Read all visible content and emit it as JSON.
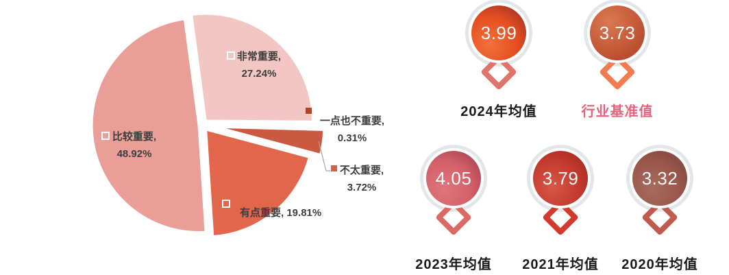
{
  "chart_data": {
    "type": "pie",
    "title": "",
    "start_angle_deg": -7.6,
    "legend_position": "none",
    "slices": [
      {
        "name": "非常重要",
        "label_text": "非常重要,",
        "value_text": "27.24%",
        "pct": 27.24,
        "color": "#f2c6c2",
        "explode": 8,
        "marker": "hollow"
      },
      {
        "name": "一点也不重要",
        "label_text": "一点也不重要,",
        "value_text": "0.31%",
        "pct": 0.31,
        "color": "#a8402e",
        "explode": 16,
        "marker": "#b1432c"
      },
      {
        "name": "不太重要",
        "label_text": "不太重要,",
        "value_text": "3.72%",
        "pct": 3.72,
        "color": "#cb5840",
        "explode": 22,
        "marker": "#d2604a"
      },
      {
        "name": "有点重要",
        "label_text": "有点重要,",
        "value_text": "19.81%",
        "pct": 19.81,
        "color": "#e2664b",
        "explode": 9,
        "marker": "hollow"
      },
      {
        "name": "比较重要",
        "label_text": "比较重要,",
        "value_text": "48.92%",
        "pct": 48.92,
        "color": "#e99e97",
        "explode": 5,
        "marker": "hollow"
      }
    ]
  },
  "badges": [
    {
      "value": "3.99",
      "label": "2024年均值",
      "label_color": "#1a1a1a",
      "gradient": [
        "#f2703c",
        "#e54e20",
        "#8a2c26"
      ],
      "diamond": "#e0736b"
    },
    {
      "value": "3.73",
      "label": "行业基准值",
      "label_color": "#e8627e",
      "gradient": [
        "#d97a52",
        "#c65a38",
        "#a83f24"
      ],
      "diamond": "#f07c50"
    },
    {
      "value": "4.05",
      "label": "2023年均值",
      "label_color": "#1a1a1a",
      "gradient": [
        "#df767c",
        "#d45f68",
        "#96394a"
      ],
      "diamond": "#dc6a64"
    },
    {
      "value": "3.79",
      "label": "2021年均值",
      "label_color": "#1a1a1a",
      "gradient": [
        "#d65848",
        "#c43a2e",
        "#99261f"
      ],
      "diamond": "#d23a2e"
    },
    {
      "value": "3.32",
      "label": "2020年均值",
      "label_color": "#1a1a1a",
      "gradient": [
        "#a86b5e",
        "#9a574c",
        "#74413a"
      ],
      "diamond": "#c05a4f"
    }
  ]
}
